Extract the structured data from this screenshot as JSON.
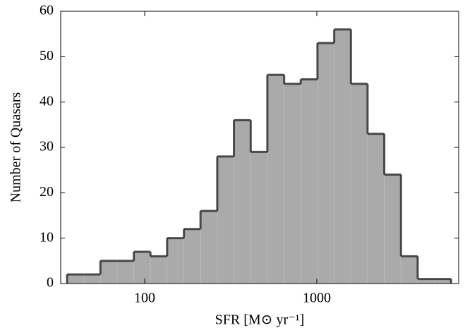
{
  "chart_data": {
    "type": "histogram",
    "xlabel": "SFR [M⊙ yr⁻¹]",
    "ylabel": "Number of Quasars",
    "bins": [
      35.4,
      44.3,
      55.3,
      69.2,
      86.5,
      108,
      135,
      169,
      211,
      264,
      330,
      413,
      516,
      646,
      807,
      1009,
      1262,
      1578,
      1972,
      2466,
      3083,
      3855,
      4819,
      6026
    ],
    "values": [
      2,
      2,
      5,
      5,
      7,
      6,
      10,
      12,
      16,
      28,
      36,
      29,
      46,
      44,
      45,
      53,
      56,
      44,
      33,
      24,
      6,
      1,
      1
    ],
    "color": "#aaaaaa",
    "edgecolor": "#333333",
    "xscale": "log",
    "xlim": [
      32.5,
      6670
    ],
    "xticks": [
      100,
      1000
    ],
    "ylim": [
      0,
      60
    ],
    "yticks": [
      0,
      10,
      20,
      30,
      40,
      50,
      60
    ]
  }
}
